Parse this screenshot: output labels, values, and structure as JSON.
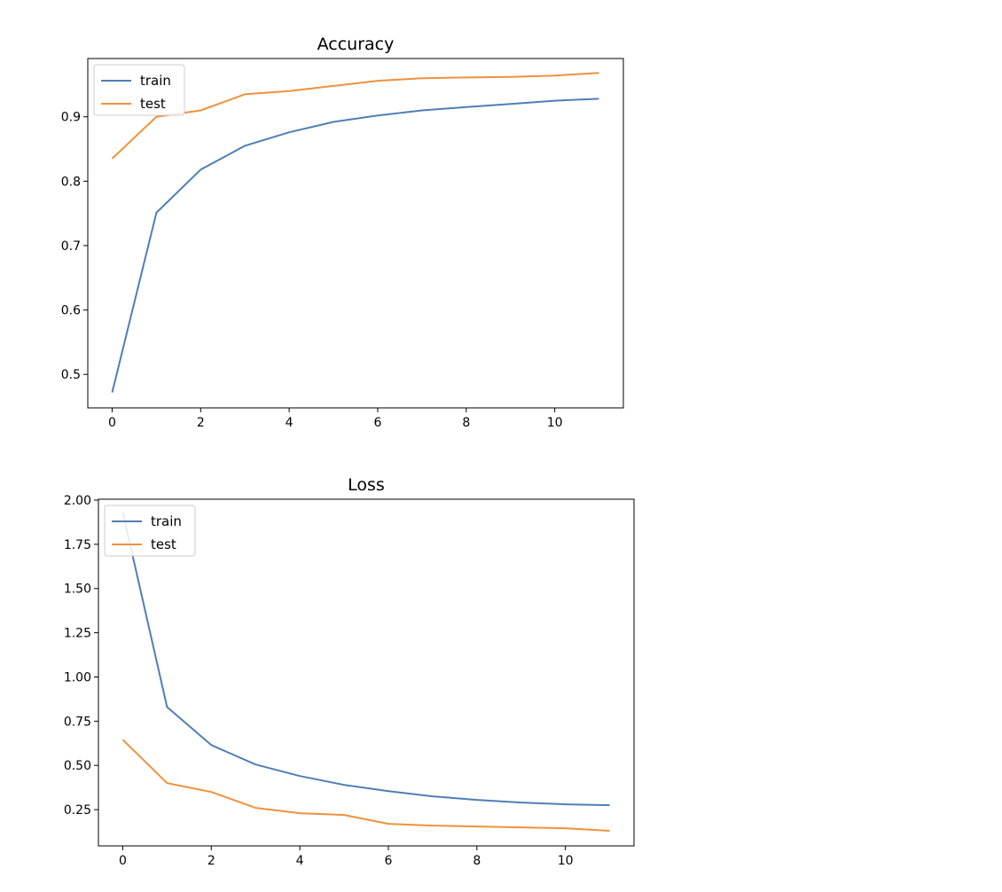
{
  "chart_data": [
    {
      "type": "line",
      "title": "Accuracy",
      "xlabel": "",
      "ylabel": "",
      "xlim": [
        -0.55,
        11.55
      ],
      "ylim": [
        0.448,
        0.9905
      ],
      "xticks": [
        0,
        2,
        4,
        6,
        8,
        10
      ],
      "yticks": [
        0.5,
        0.6,
        0.7,
        0.8,
        0.9
      ],
      "xtick_labels": [
        "0",
        "2",
        "4",
        "6",
        "8",
        "10"
      ],
      "ytick_labels": [
        "0.5",
        "0.6",
        "0.7",
        "0.8",
        "0.9"
      ],
      "grid": false,
      "legend_position": "upper left",
      "x": [
        0,
        1,
        2,
        3,
        4,
        5,
        6,
        7,
        8,
        9,
        10,
        11
      ],
      "series": [
        {
          "name": "train",
          "color": "#4e7fb5",
          "values": [
            0.472,
            0.751,
            0.818,
            0.855,
            0.876,
            0.892,
            0.902,
            0.91,
            0.915,
            0.92,
            0.925,
            0.928
          ]
        },
        {
          "name": "test",
          "color": "#f0913c",
          "values": [
            0.835,
            0.9,
            0.91,
            0.935,
            0.94,
            0.948,
            0.956,
            0.96,
            0.961,
            0.962,
            0.964,
            0.968
          ]
        }
      ]
    },
    {
      "type": "line",
      "title": "Loss",
      "xlabel": "",
      "ylabel": "",
      "xlim": [
        -0.55,
        11.55
      ],
      "ylim": [
        0.045,
        2.005
      ],
      "xticks": [
        0,
        2,
        4,
        6,
        8,
        10
      ],
      "yticks": [
        0.25,
        0.5,
        0.75,
        1.0,
        1.25,
        1.5,
        1.75,
        2.0
      ],
      "xtick_labels": [
        "0",
        "2",
        "4",
        "6",
        "8",
        "10"
      ],
      "ytick_labels": [
        "0.25",
        "0.50",
        "0.75",
        "1.00",
        "1.25",
        "1.50",
        "1.75",
        "2.00"
      ],
      "grid": false,
      "legend_position": "upper left",
      "x": [
        0,
        1,
        2,
        3,
        4,
        5,
        6,
        7,
        8,
        9,
        10,
        11
      ],
      "series": [
        {
          "name": "train",
          "color": "#4e7fb5",
          "values": [
            1.93,
            0.83,
            0.615,
            0.505,
            0.44,
            0.39,
            0.355,
            0.325,
            0.305,
            0.29,
            0.28,
            0.275
          ]
        },
        {
          "name": "test",
          "color": "#f0913c",
          "values": [
            0.645,
            0.4,
            0.35,
            0.26,
            0.23,
            0.22,
            0.17,
            0.16,
            0.155,
            0.15,
            0.145,
            0.13
          ]
        }
      ]
    }
  ]
}
